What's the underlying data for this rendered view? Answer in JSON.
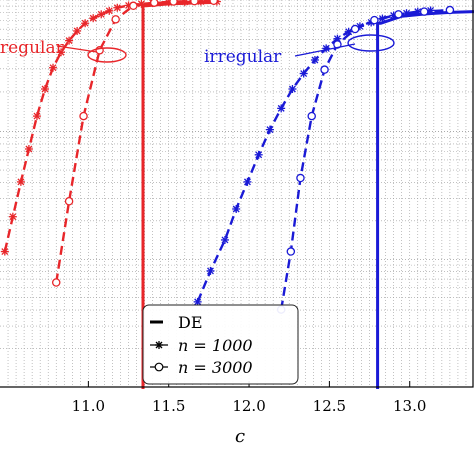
{
  "chart_data": {
    "type": "line",
    "title": "",
    "xlabel": "c",
    "ylabel": "",
    "xlim": [
      10.45,
      13.4
    ],
    "ylim": [
      0,
      1
    ],
    "y_scale": "log",
    "grid": "dotted",
    "xticks": [
      "11.0",
      "11.5",
      "12.0",
      "12.5",
      "13.0"
    ],
    "legend": {
      "placement": "bottom-center",
      "entries": [
        {
          "label": "DE",
          "marker": "none",
          "linestyle": "solid"
        },
        {
          "label": "n = 1000",
          "marker": "star",
          "linestyle": "dashed"
        },
        {
          "label": "n = 3000",
          "marker": "circle",
          "linestyle": "dashed"
        }
      ]
    },
    "annotations": [
      {
        "text": "regular",
        "color": "#e8262a"
      },
      {
        "text": "irregular",
        "color": "#1a1ad6"
      }
    ],
    "colors": {
      "regular": "#e8262a",
      "irregular": "#1a1ad6"
    },
    "series": [
      {
        "group": "regular",
        "kind": "DE",
        "threshold": 11.34,
        "points": [
          [
            11.34,
            0.0
          ],
          [
            11.36,
            0.985
          ],
          [
            11.5,
            0.99
          ],
          [
            11.7,
            0.993
          ],
          [
            11.8,
            0.994
          ]
        ]
      },
      {
        "group": "regular",
        "kind": "n1000",
        "points": [
          [
            10.48,
            0.35
          ],
          [
            10.53,
            0.44
          ],
          [
            10.58,
            0.53
          ],
          [
            10.63,
            0.615
          ],
          [
            10.68,
            0.7
          ],
          [
            10.73,
            0.77
          ],
          [
            10.78,
            0.825
          ],
          [
            10.83,
            0.865
          ],
          [
            10.88,
            0.895
          ],
          [
            10.93,
            0.92
          ],
          [
            10.98,
            0.94
          ],
          [
            11.03,
            0.953
          ],
          [
            11.08,
            0.963
          ],
          [
            11.13,
            0.972
          ],
          [
            11.18,
            0.98
          ],
          [
            11.25,
            0.986
          ],
          [
            11.33,
            0.99
          ],
          [
            11.4,
            0.992
          ],
          [
            11.5,
            0.994
          ],
          [
            11.6,
            0.995
          ],
          [
            11.7,
            0.996
          ],
          [
            11.8,
            0.996
          ]
        ]
      },
      {
        "group": "regular",
        "kind": "n3000",
        "points": [
          [
            10.8,
            0.27
          ],
          [
            10.88,
            0.48
          ],
          [
            10.97,
            0.7
          ],
          [
            11.07,
            0.87
          ],
          [
            11.17,
            0.95
          ],
          [
            11.28,
            0.985
          ],
          [
            11.41,
            0.993
          ],
          [
            11.53,
            0.996
          ],
          [
            11.66,
            0.997
          ],
          [
            11.78,
            0.998
          ]
        ]
      },
      {
        "group": "irregular",
        "kind": "DE",
        "threshold": 12.8,
        "points": [
          [
            12.8,
            0.0
          ],
          [
            12.82,
            0.94
          ],
          [
            12.95,
            0.958
          ],
          [
            13.1,
            0.964
          ],
          [
            13.25,
            0.968
          ],
          [
            13.4,
            0.97
          ]
        ]
      },
      {
        "group": "irregular",
        "kind": "n1000",
        "points": [
          [
            11.68,
            0.22
          ],
          [
            11.76,
            0.3
          ],
          [
            11.85,
            0.38
          ],
          [
            11.92,
            0.46
          ],
          [
            11.99,
            0.53
          ],
          [
            12.06,
            0.6
          ],
          [
            12.13,
            0.665
          ],
          [
            12.2,
            0.72
          ],
          [
            12.27,
            0.77
          ],
          [
            12.34,
            0.81
          ],
          [
            12.41,
            0.845
          ],
          [
            12.48,
            0.875
          ],
          [
            12.55,
            0.9
          ],
          [
            12.62,
            0.918
          ],
          [
            12.69,
            0.932
          ],
          [
            12.76,
            0.942
          ],
          [
            12.83,
            0.952
          ],
          [
            12.9,
            0.96
          ],
          [
            12.98,
            0.966
          ],
          [
            13.05,
            0.97
          ],
          [
            13.13,
            0.973
          ]
        ]
      },
      {
        "group": "irregular",
        "kind": "n3000",
        "points": [
          [
            12.2,
            0.2
          ],
          [
            12.26,
            0.35
          ],
          [
            12.32,
            0.54
          ],
          [
            12.39,
            0.7
          ],
          [
            12.47,
            0.82
          ],
          [
            12.55,
            0.885
          ],
          [
            12.66,
            0.925
          ],
          [
            12.78,
            0.948
          ],
          [
            12.93,
            0.963
          ],
          [
            13.09,
            0.97
          ],
          [
            13.25,
            0.974
          ]
        ]
      }
    ]
  }
}
